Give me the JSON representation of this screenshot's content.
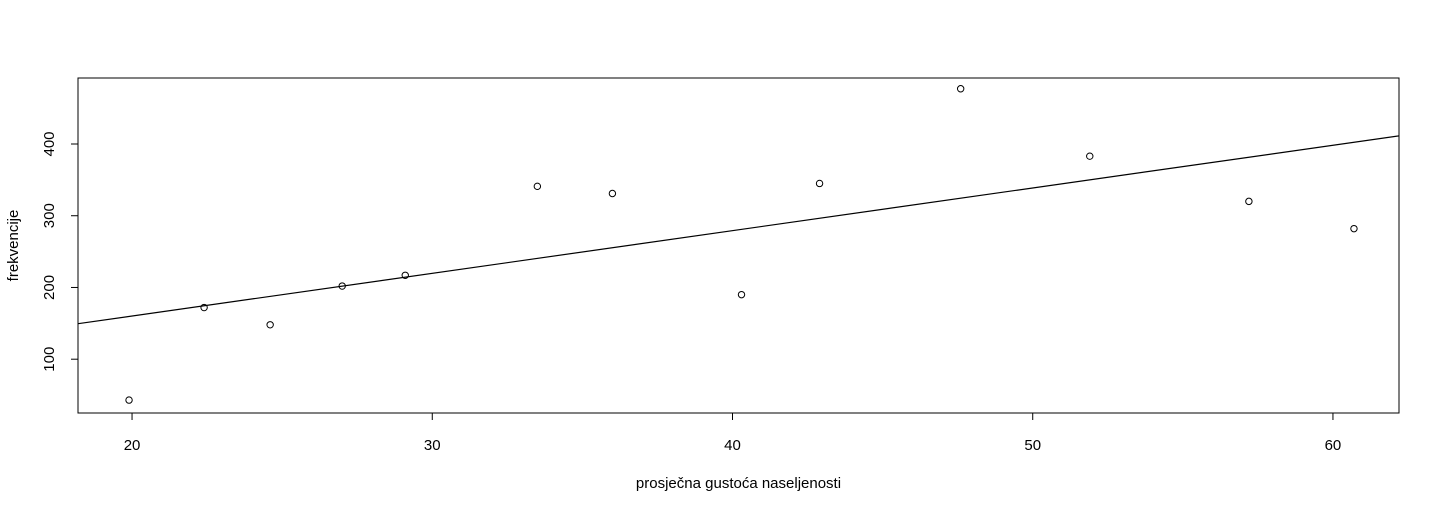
{
  "chart_data": {
    "type": "scatter",
    "title": "",
    "xlabel": "prosječna gustoća naseljenosti",
    "ylabel": "frekvencije",
    "xlim": [
      18.2,
      62.2
    ],
    "ylim": [
      25,
      492
    ],
    "x_ticks": [
      20,
      30,
      40,
      50,
      60
    ],
    "x_tick_labels": [
      "20",
      "30",
      "40",
      "50",
      "60"
    ],
    "y_ticks": [
      100,
      200,
      300,
      400
    ],
    "y_tick_labels": [
      "100",
      "200",
      "300",
      "400"
    ],
    "grid": false,
    "legend": "none",
    "point_color": "#000000",
    "points": [
      {
        "x": 19.9,
        "y": 43
      },
      {
        "x": 22.4,
        "y": 172
      },
      {
        "x": 24.6,
        "y": 148
      },
      {
        "x": 27.0,
        "y": 202
      },
      {
        "x": 29.1,
        "y": 217
      },
      {
        "x": 33.5,
        "y": 341
      },
      {
        "x": 36.0,
        "y": 331
      },
      {
        "x": 40.3,
        "y": 190
      },
      {
        "x": 42.9,
        "y": 345
      },
      {
        "x": 47.6,
        "y": 477
      },
      {
        "x": 51.9,
        "y": 383
      },
      {
        "x": 57.2,
        "y": 320
      },
      {
        "x": 60.7,
        "y": 282
      }
    ],
    "regression_line": {
      "intercept": 41.2,
      "slope": 5.95
    }
  }
}
